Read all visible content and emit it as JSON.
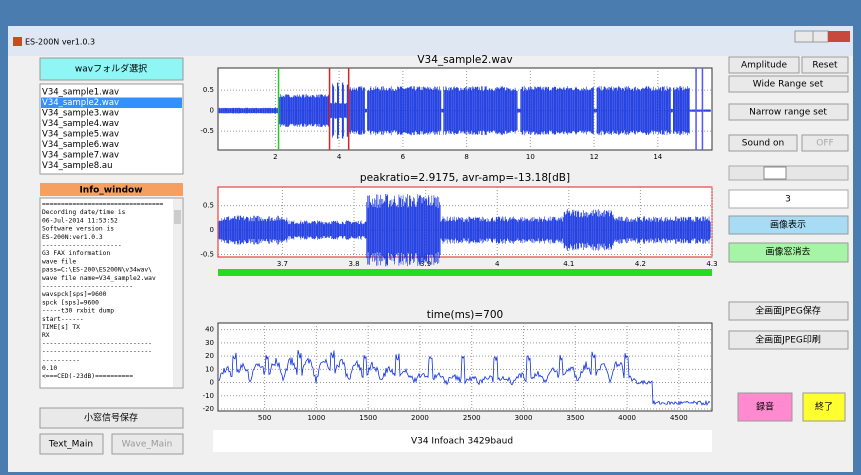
{
  "window": {
    "title": "ES-200N ver1.0.3"
  },
  "left": {
    "folder_button": "wavフォルダ選択",
    "files": [
      "V34_sample1.wav",
      "V34_sample2.wav",
      "V34_sample3.wav",
      "V34_sample4.wav",
      "V34_sample5.wav",
      "V34_sample6.wav",
      "V34_sample7.wav",
      "V34_sample8.au"
    ],
    "info_title": "Info_window",
    "info_lines": [
      "================================",
      "Decording date/time is",
      "06-Jul-2014 11:53:52",
      "Software version is",
      "ES-200N:ver1.0.3",
      "---------------------",
      "G3 FAX information",
      "wave file",
      "pass=C:\\ES-200\\ES200N\\v34wav\\",
      "wave file name=V34_sample2.wav",
      "------------------------",
      "wavspck[sps]=9600",
      "spck   [sps]=9600",
      "-----t30 rxbit dump",
      "start------",
      "TIME[s]  TX",
      " RX",
      "-----------------------------",
      "-----------------------------",
      "----------",
      "0.10",
      "<===CED(-23dB)=========="
    ],
    "save_button": "小窓信号保存",
    "text_main": "Text_Main",
    "wave_main": "Wave_Main"
  },
  "plots": [
    {
      "title": "V34_sample2.wav",
      "xlim": [
        0.2,
        15.7
      ],
      "ylim": [
        -0.96,
        1.04
      ],
      "xticks": [
        2,
        4,
        6,
        8,
        10,
        12,
        14
      ],
      "yticks": [
        0.5,
        0,
        -0.5
      ],
      "markers": [
        {
          "x": 2.1,
          "color": "#22cc22"
        },
        {
          "x": 3.7,
          "color": "#dd2222"
        },
        {
          "x": 4.3,
          "color": "#dd2222"
        },
        {
          "x": 15.2,
          "color": "#5555ff"
        },
        {
          "x": 15.4,
          "color": "#5555ff"
        }
      ]
    },
    {
      "title": "peakratio=2.9175,  avr-amp=-13.18[dB]",
      "xlim": [
        3.61,
        4.3
      ],
      "ylim": [
        -0.55,
        0.88
      ],
      "xticks": [
        3.7,
        3.8,
        3.9,
        4,
        4.1,
        4.2,
        4.3
      ],
      "yticks": [
        0.5,
        0,
        -0.5
      ]
    },
    {
      "title": "time(ms)=700",
      "xlim": [
        50,
        4820
      ],
      "ylim": [
        -21.5,
        45
      ],
      "xticks": [
        500,
        1000,
        1500,
        2000,
        2500,
        3000,
        3500,
        4000,
        4500
      ],
      "yticks": [
        40,
        30,
        20,
        10,
        0,
        -10,
        -20
      ]
    }
  ],
  "bottom_label": "V34 Infoach 3429baud",
  "right": {
    "amplitude": "Amplitude",
    "reset": "Reset",
    "wide": "Wide Range set",
    "narrow": "Narrow range set",
    "sound_on": "Sound on",
    "off": "OFF",
    "slider_value": "3",
    "show_image": "画像表示",
    "clear_image": "画像窓消去",
    "jpeg_save": "全画面JPEG保存",
    "jpeg_print": "全画面JPEG印刷",
    "record": "録音",
    "quit": "終了"
  }
}
